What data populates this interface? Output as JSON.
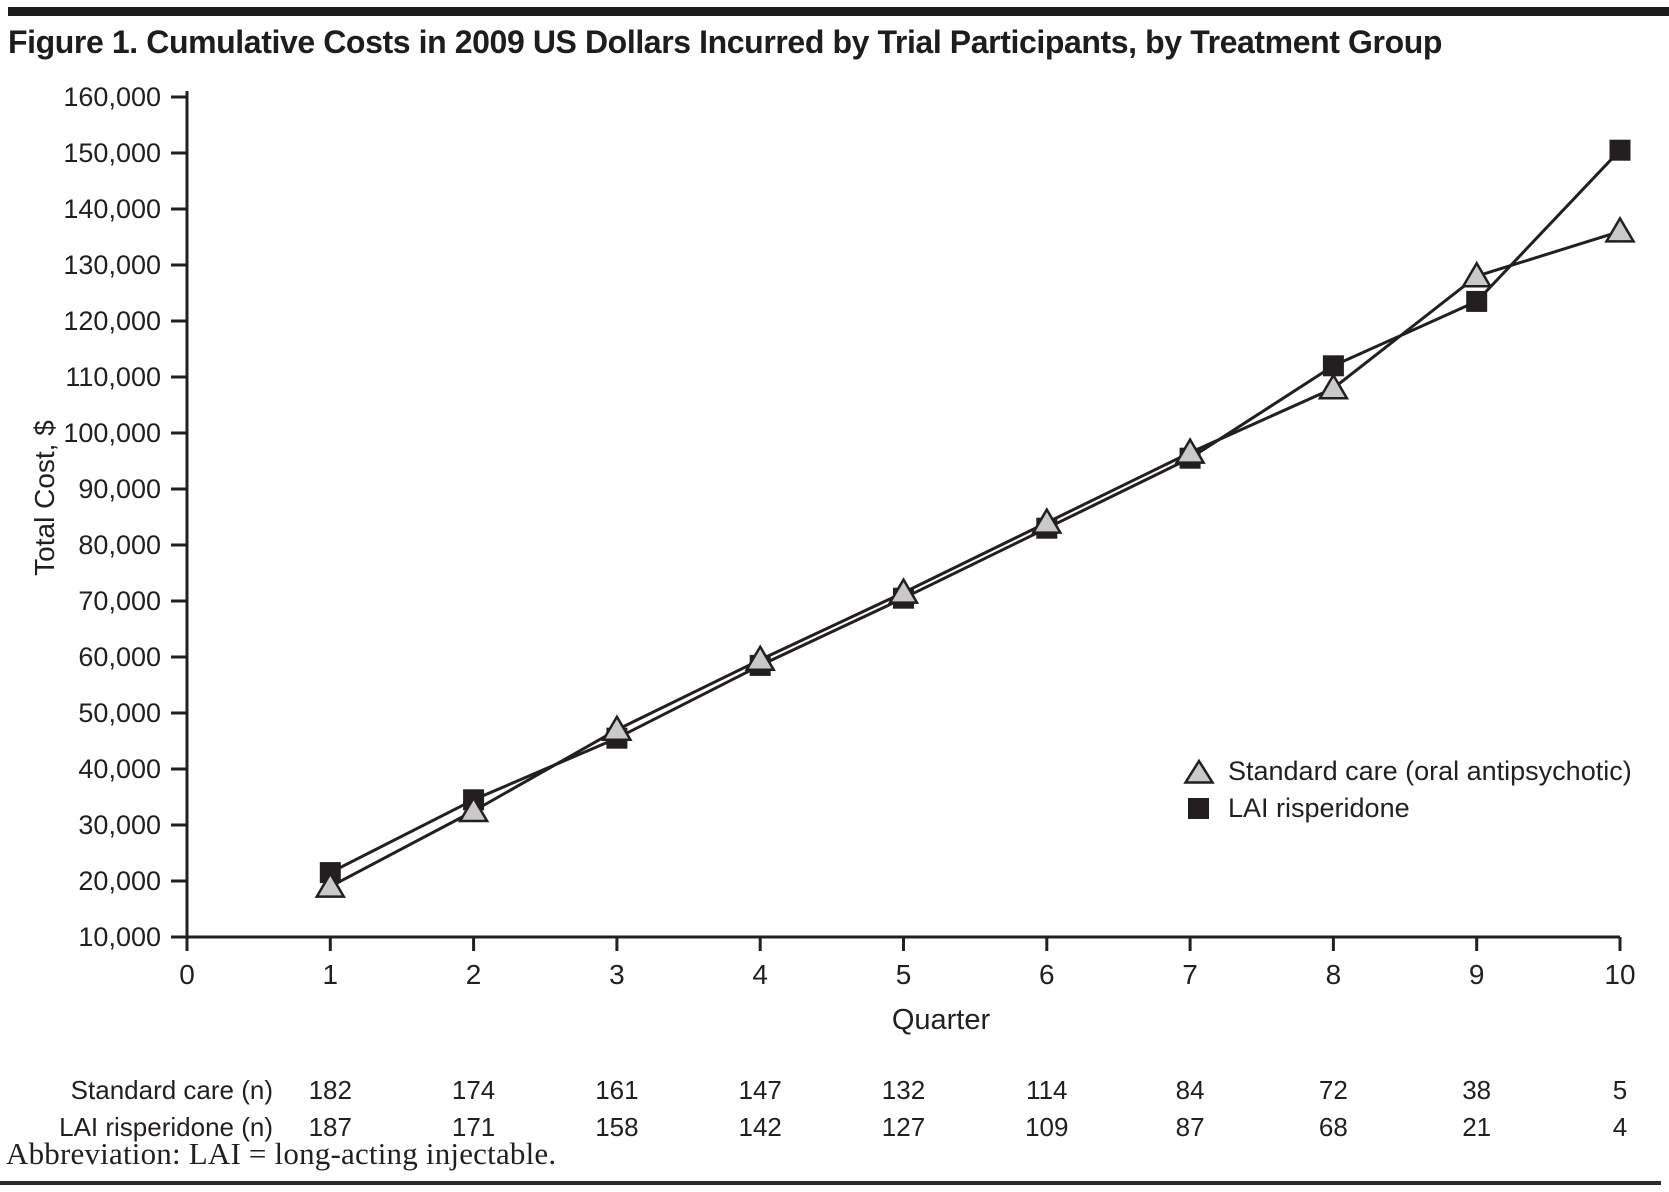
{
  "figure": {
    "title": "Figure 1. Cumulative Costs in 2009 US Dollars Incurred by Trial Participants, by Treatment Group",
    "abbreviation_note": "Abbreviation: LAI = long-acting injectable."
  },
  "chart_data": {
    "type": "line",
    "title": "Figure 1. Cumulative Costs in 2009 US Dollars Incurred by Trial Participants, by Treatment Group",
    "xlabel": "Quarter",
    "ylabel": "Total Cost, $",
    "x": [
      1,
      2,
      3,
      4,
      5,
      6,
      7,
      8,
      9,
      10
    ],
    "xlim": [
      0,
      10
    ],
    "xticks": [
      0,
      1,
      2,
      3,
      4,
      5,
      6,
      7,
      8,
      9,
      10
    ],
    "ylim": [
      10000,
      160000
    ],
    "yticks": [
      10000,
      20000,
      30000,
      40000,
      50000,
      60000,
      70000,
      80000,
      90000,
      100000,
      110000,
      120000,
      130000,
      140000,
      150000,
      160000
    ],
    "grid": false,
    "legend_position": "inside-right",
    "series": [
      {
        "name": "Standard care (oral antipsychotic)",
        "marker": "triangle",
        "marker_fill": "#c9c9c9",
        "values": [
          19000,
          32500,
          47000,
          59500,
          71500,
          84000,
          96500,
          108000,
          128000,
          136000
        ]
      },
      {
        "name": "LAI risperidone",
        "marker": "square",
        "marker_fill": "#231f20",
        "values": [
          21500,
          34500,
          45500,
          58500,
          70500,
          83000,
          95500,
          112000,
          123500,
          150500
        ]
      }
    ]
  },
  "risk_table": {
    "rows": [
      {
        "label": "Standard care (n)",
        "values": [
          182,
          174,
          161,
          147,
          132,
          114,
          84,
          72,
          38,
          5
        ]
      },
      {
        "label": "LAI risperidone (n)",
        "values": [
          187,
          171,
          158,
          142,
          127,
          109,
          87,
          68,
          21,
          4
        ]
      }
    ]
  },
  "colors": {
    "ink": "#231f20",
    "triangle_fill": "#c9c9c9",
    "background": "#ffffff"
  }
}
